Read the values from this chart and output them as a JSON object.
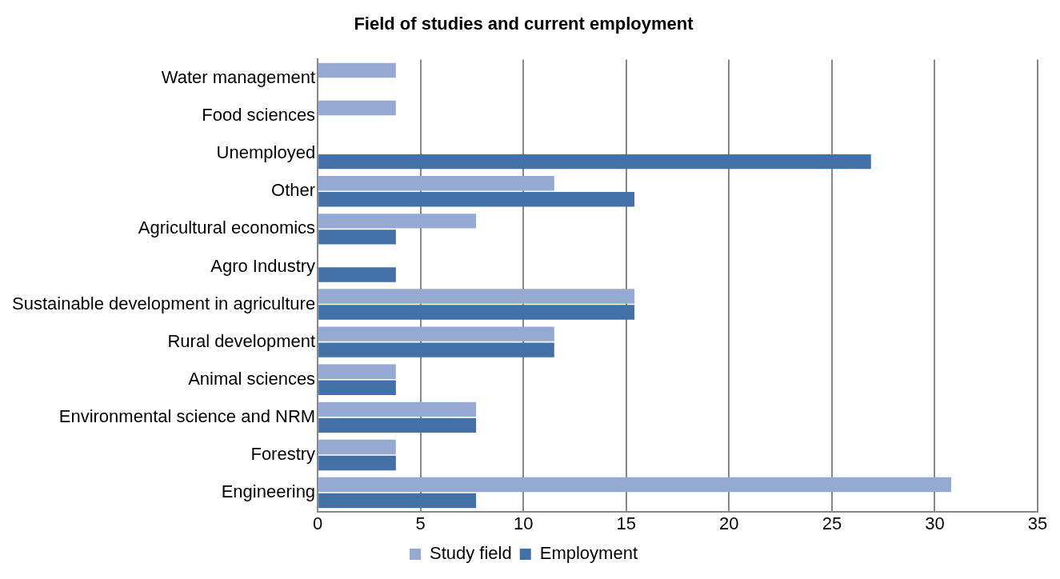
{
  "chart_data": {
    "type": "bar",
    "orientation": "horizontal",
    "title": "Field of studies and current employment",
    "categories": [
      "Water management",
      "Food sciences",
      "Unemployed",
      "Other",
      "Agricultural economics",
      "Agro Industry",
      "Sustainable development in agriculture",
      "Rural development",
      "Animal sciences",
      "Environmental science and NRM",
      "Forestry",
      "Engineering"
    ],
    "series": [
      {
        "name": "Study field",
        "color": "#95aad3",
        "values": [
          3.8,
          3.8,
          null,
          11.5,
          7.7,
          null,
          15.4,
          11.5,
          3.8,
          7.7,
          3.8,
          30.8
        ]
      },
      {
        "name": "Employment",
        "color": "#4470a8",
        "values": [
          null,
          null,
          26.9,
          15.4,
          3.8,
          3.8,
          15.4,
          11.5,
          3.8,
          7.7,
          3.8,
          7.7
        ]
      }
    ],
    "xlim": [
      0,
      35
    ],
    "xticks": [
      0,
      5,
      10,
      15,
      20,
      25,
      30,
      35
    ],
    "grid": "x",
    "legend": "bottom"
  }
}
